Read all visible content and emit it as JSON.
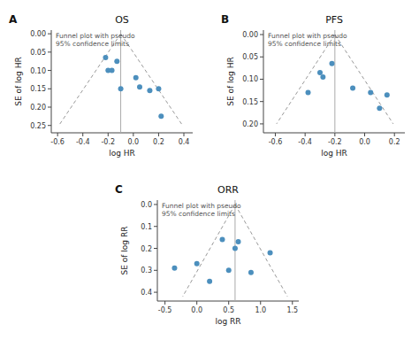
{
  "chart_data": [
    {
      "type": "scatter",
      "label": "A",
      "title": "OS",
      "subtitle": "Funnel plot with pseudo\n95% confidence limits",
      "xlabel": "log HR",
      "ylabel": "SE of log HR",
      "xlim": [
        -0.65,
        0.47
      ],
      "ylim": [
        0.27,
        -0.01
      ],
      "xticks": [
        -0.6,
        -0.4,
        -0.2,
        {
          "value": 0.0,
          "label": "0.0"
        },
        0.2,
        0.4
      ],
      "yticks": [
        {
          "value": 0.0,
          "label": "0.00"
        },
        0.05,
        {
          "value": 0.1,
          "label": "0.10"
        },
        0.15,
        {
          "value": 0.2,
          "label": "0.20"
        },
        0.25
      ],
      "x": [
        -0.22,
        -0.2,
        -0.17,
        -0.13,
        -0.1,
        0.02,
        0.05,
        0.13,
        0.2,
        0.22
      ],
      "y": [
        0.065,
        0.1,
        0.1,
        0.075,
        0.15,
        0.12,
        0.145,
        0.155,
        0.15,
        0.225
      ],
      "color": "#4c8fbd",
      "funnel": {
        "apex_x": -0.1,
        "apex_y": 0,
        "left_x": -0.59,
        "right_x": 0.39,
        "base_y": 0.25,
        "color": "#999999",
        "line_style": "dashed"
      },
      "vline_x": -0.1,
      "vline_color": "#aaaaaa"
    },
    {
      "type": "scatter",
      "label": "B",
      "title": "PFS",
      "subtitle": "Funnel plot with pseudo\n95% confidence limits",
      "xlabel": "log HR",
      "ylabel": "SE of log HR",
      "xlim": [
        -0.68,
        0.27
      ],
      "ylim": [
        0.22,
        -0.01
      ],
      "xticks": [
        -0.6,
        -0.4,
        -0.2,
        {
          "value": 0.0,
          "label": "0.0"
        },
        0.2
      ],
      "yticks": [
        {
          "value": 0.0,
          "label": "0.00"
        },
        0.05,
        {
          "value": 0.1,
          "label": "0.10"
        },
        0.15,
        {
          "value": 0.2,
          "label": "0.20"
        }
      ],
      "x": [
        -0.38,
        -0.3,
        -0.28,
        -0.22,
        -0.08,
        0.04,
        0.1,
        0.15
      ],
      "y": [
        0.13,
        0.085,
        0.095,
        0.065,
        0.12,
        0.13,
        0.165,
        0.135
      ],
      "color": "#4c8fbd",
      "funnel": {
        "apex_x": -0.2,
        "apex_y": 0,
        "left_x": -0.592,
        "right_x": 0.192,
        "base_y": 0.2,
        "color": "#999999",
        "line_style": "dashed"
      },
      "vline_x": -0.2,
      "vline_color": "#aaaaaa"
    },
    {
      "type": "scatter",
      "label": "C",
      "title": "ORR",
      "subtitle": "Funnel plot with pseudo\n95% confidence limits",
      "xlabel": "log RR",
      "ylabel": "SE of log RR",
      "xlim": [
        -0.62,
        1.6
      ],
      "ylim": [
        0.44,
        -0.02
      ],
      "xticks": [
        -0.5,
        {
          "value": 0.0,
          "label": "0.0"
        },
        0.5,
        {
          "value": 1.0,
          "label": "1.0"
        },
        1.5
      ],
      "yticks": [
        {
          "value": 0.0,
          "label": "0.0"
        },
        0.1,
        0.2,
        0.3,
        0.4
      ],
      "x": [
        -0.35,
        0.0,
        0.2,
        0.4,
        0.5,
        0.6,
        0.65,
        0.85,
        1.15
      ],
      "y": [
        0.29,
        0.27,
        0.35,
        0.16,
        0.3,
        0.2,
        0.17,
        0.31,
        0.22
      ],
      "color": "#4c8fbd",
      "funnel": {
        "apex_x": 0.6,
        "apex_y": 0,
        "left_x": -0.2232,
        "right_x": 1.4232,
        "base_y": 0.42,
        "color": "#999999",
        "line_style": "dashed"
      },
      "vline_x": 0.6,
      "vline_color": "#aaaaaa"
    }
  ]
}
